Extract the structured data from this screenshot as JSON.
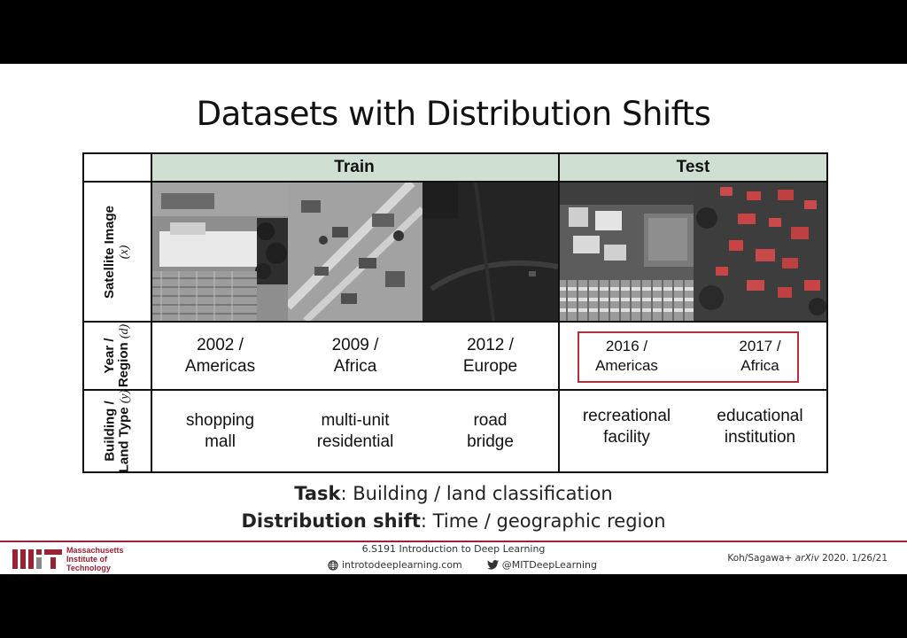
{
  "slide": {
    "title": "Datasets with Distribution Shifts",
    "table": {
      "headers": {
        "train": "Train",
        "test": "Test"
      },
      "row_labels": {
        "satellite": {
          "line1": "Satellite Image",
          "var": "(x)"
        },
        "year": {
          "line1": "Year /",
          "line2": "Region",
          "var": "(d)"
        },
        "building": {
          "line1": "Building /",
          "line2": "Land Type",
          "var": "(y)"
        }
      },
      "year_region": [
        {
          "year": "2002 /",
          "region": "Americas"
        },
        {
          "year": "2009 /",
          "region": "Africa"
        },
        {
          "year": "2012 /",
          "region": "Europe"
        },
        {
          "year": "2016 /",
          "region": "Americas"
        },
        {
          "year": "2017 /",
          "region": "Africa"
        }
      ],
      "land_type": [
        {
          "line1": "shopping",
          "line2": "mall"
        },
        {
          "line1": "multi-unit",
          "line2": "residential"
        },
        {
          "line1": "road",
          "line2": "bridge"
        },
        {
          "line1": "recreational",
          "line2": "facility"
        },
        {
          "line1": "educational",
          "line2": "institution"
        }
      ]
    },
    "task_label": "Task",
    "task_text": ": Building / land classification",
    "shift_label": "Distribution shift",
    "shift_text": ": Time / geographic region"
  },
  "footer": {
    "mit_line1": "Massachusetts",
    "mit_line2": "Institute of",
    "mit_line3": "Technology",
    "course": "6.S191 Introduction to Deep Learning",
    "website": "introtodeeplearning.com",
    "twitter": "@MITDeepLearning",
    "citation_pre": "Koh/Sagawa+ ",
    "citation_venue": "arXiv",
    "citation_post": " 2020.  1/26/21",
    "icons": {
      "globe": "globe-icon",
      "twitter": "twitter-icon"
    }
  },
  "colors": {
    "header_bg": "#cfe0d2",
    "accent": "#9a2233",
    "highlight_box": "#b0303c"
  }
}
